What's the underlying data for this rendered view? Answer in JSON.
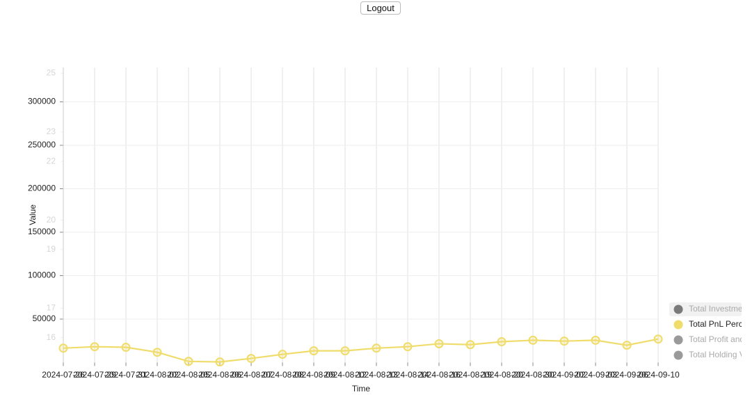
{
  "logout": "Logout",
  "chart_data": {
    "type": "line",
    "x_label": "Time",
    "y_label": "Value",
    "categories": [
      "2024-07-26",
      "2024-07-29",
      "2024-07-31",
      "2024-08-02",
      "2024-08-05",
      "2024-08-06",
      "2024-08-07",
      "2024-08-08",
      "2024-08-09",
      "2024-08-12",
      "2024-08-13",
      "2024-08-14",
      "2024-08-16",
      "2024-08-19",
      "2024-08-20",
      "2024-08-30",
      "2024-09-02",
      "2024-09-03",
      "2024-09-06",
      "2024-09-10"
    ],
    "ylim": [
      0,
      339600
    ],
    "yticks": [
      50000,
      100000,
      150000,
      200000,
      250000,
      300000
    ],
    "y2lim": [
      15.15,
      25.2
    ],
    "y2ticks": [
      16,
      17,
      19,
      20,
      22,
      23,
      25
    ],
    "grid": true,
    "series": [
      {
        "name": "Total PnL Percentage",
        "color": "#efdc6a",
        "axis": "y2",
        "values": [
          15.64,
          15.69,
          15.67,
          15.5,
          15.19,
          15.17,
          15.29,
          15.43,
          15.55,
          15.55,
          15.64,
          15.69,
          15.79,
          15.76,
          15.86,
          15.91,
          15.88,
          15.91,
          15.74,
          15.95
        ]
      }
    ],
    "hidden_series": [
      {
        "name": "Total Investment",
        "color": "#7a7a7a"
      },
      {
        "name": "Total Profit and Loss",
        "color": "#9a9a9a"
      },
      {
        "name": "Total Holding Value",
        "color": "#9a9a9a"
      }
    ],
    "legend": "right"
  }
}
